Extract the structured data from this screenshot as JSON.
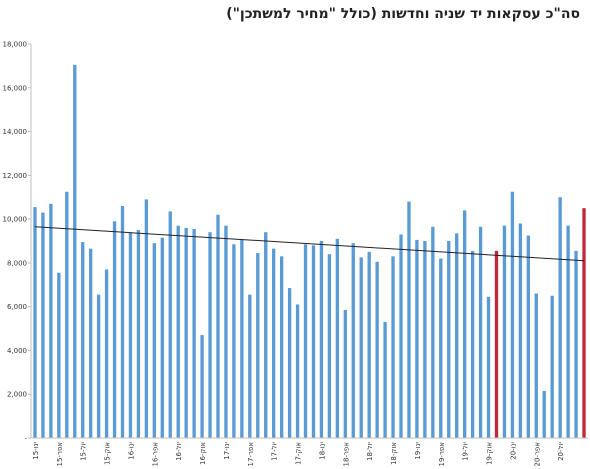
{
  "chart_data": {
    "type": "bar",
    "title": "סה\"כ עסקאות  יד שניה וחדשות (כולל \"מחיר למשתכן\")",
    "xlabel": "",
    "ylabel": "",
    "ylim": [
      0,
      18000
    ],
    "ytick_labels": [
      "-",
      "2,000",
      "4,000",
      "6,000",
      "8,000",
      "10,000",
      "12,000",
      "14,000",
      "16,000",
      "18,000"
    ],
    "ytick_values": [
      0,
      2000,
      4000,
      6000,
      8000,
      10000,
      12000,
      14000,
      16000,
      18000
    ],
    "grid": false,
    "legend": "none",
    "bar_color": "#5b9bd5",
    "highlight_color": "#c0283c",
    "trend_color": "#222222",
    "trendline": [
      9650,
      8100
    ],
    "highlight_indices": [
      58,
      69
    ],
    "values": [
      10550,
      10300,
      10700,
      7550,
      11250,
      17050,
      8950,
      8650,
      6550,
      7700,
      9900,
      10600,
      9400,
      9500,
      10900,
      8900,
      9150,
      10350,
      9700,
      9600,
      9550,
      4700,
      9400,
      10200,
      9700,
      8850,
      9050,
      6550,
      8450,
      9400,
      8650,
      8300,
      6850,
      6100,
      8850,
      8800,
      9000,
      8400,
      9100,
      5850,
      8900,
      8250,
      8500,
      8050,
      5300,
      8300,
      9300,
      10800,
      9050,
      9000,
      9650,
      8200,
      9000,
      9350,
      10400,
      8550,
      9650,
      6450,
      8550,
      9700,
      11250,
      9800,
      9250,
      6600,
      2150,
      6500,
      11000,
      9700,
      8550,
      10500
    ],
    "x_labels": [
      "ינו-15",
      "אפר-15",
      "יול-15",
      "אוק-15",
      "ינו-16",
      "אפר-16",
      "יול-16",
      "אוק-16",
      "ינו-17",
      "אפר-17",
      "יול-17",
      "אוק-17",
      "ינו-18",
      "אפר-18",
      "יול-18",
      "אוק-18",
      "ינו-19",
      "אפר-19",
      "יול-19",
      "אוק-19",
      "ינו-20",
      "אפר-20",
      "יול-20"
    ]
  }
}
